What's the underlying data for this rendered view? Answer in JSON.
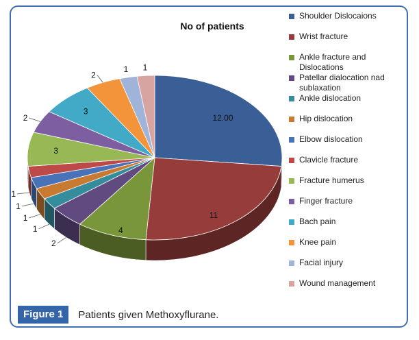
{
  "chart_data": {
    "type": "pie",
    "title": "No of patients",
    "categories": [
      "Shoulder Dislocaions",
      "Wrist fracture",
      "Ankle fracture and Dislocations",
      "Patellar dialocation nad sublaxation",
      "Ankle dislocation",
      "Hip dislocation",
      "Elbow dislocation",
      "Clavicle fracture",
      "Fracture humerus",
      "Finger fracture",
      "Bach pain",
      "Knee pain",
      "Facial injury",
      "Wound management"
    ],
    "values": [
      12,
      11,
      4,
      2,
      1,
      1,
      1,
      1,
      3,
      2,
      3,
      2,
      1,
      1
    ],
    "data_labels": [
      "12.00",
      "11",
      "4",
      "2",
      "1",
      "1",
      "1",
      "1",
      "3",
      "2",
      "3",
      "2",
      "1",
      "1"
    ],
    "colors": [
      "#3a5f96",
      "#963c3a",
      "#7a963a",
      "#604a80",
      "#358c9c",
      "#c87a32",
      "#4a72b8",
      "#bd4a48",
      "#97b855",
      "#7d5ea0",
      "#42a9c6",
      "#f3943a",
      "#9fb4d8",
      "#d8a4a2"
    ],
    "legend_position": "right",
    "style": "3d"
  },
  "caption": {
    "figure_label": "Figure 1",
    "text": "Patients given Methoxyflurane."
  }
}
